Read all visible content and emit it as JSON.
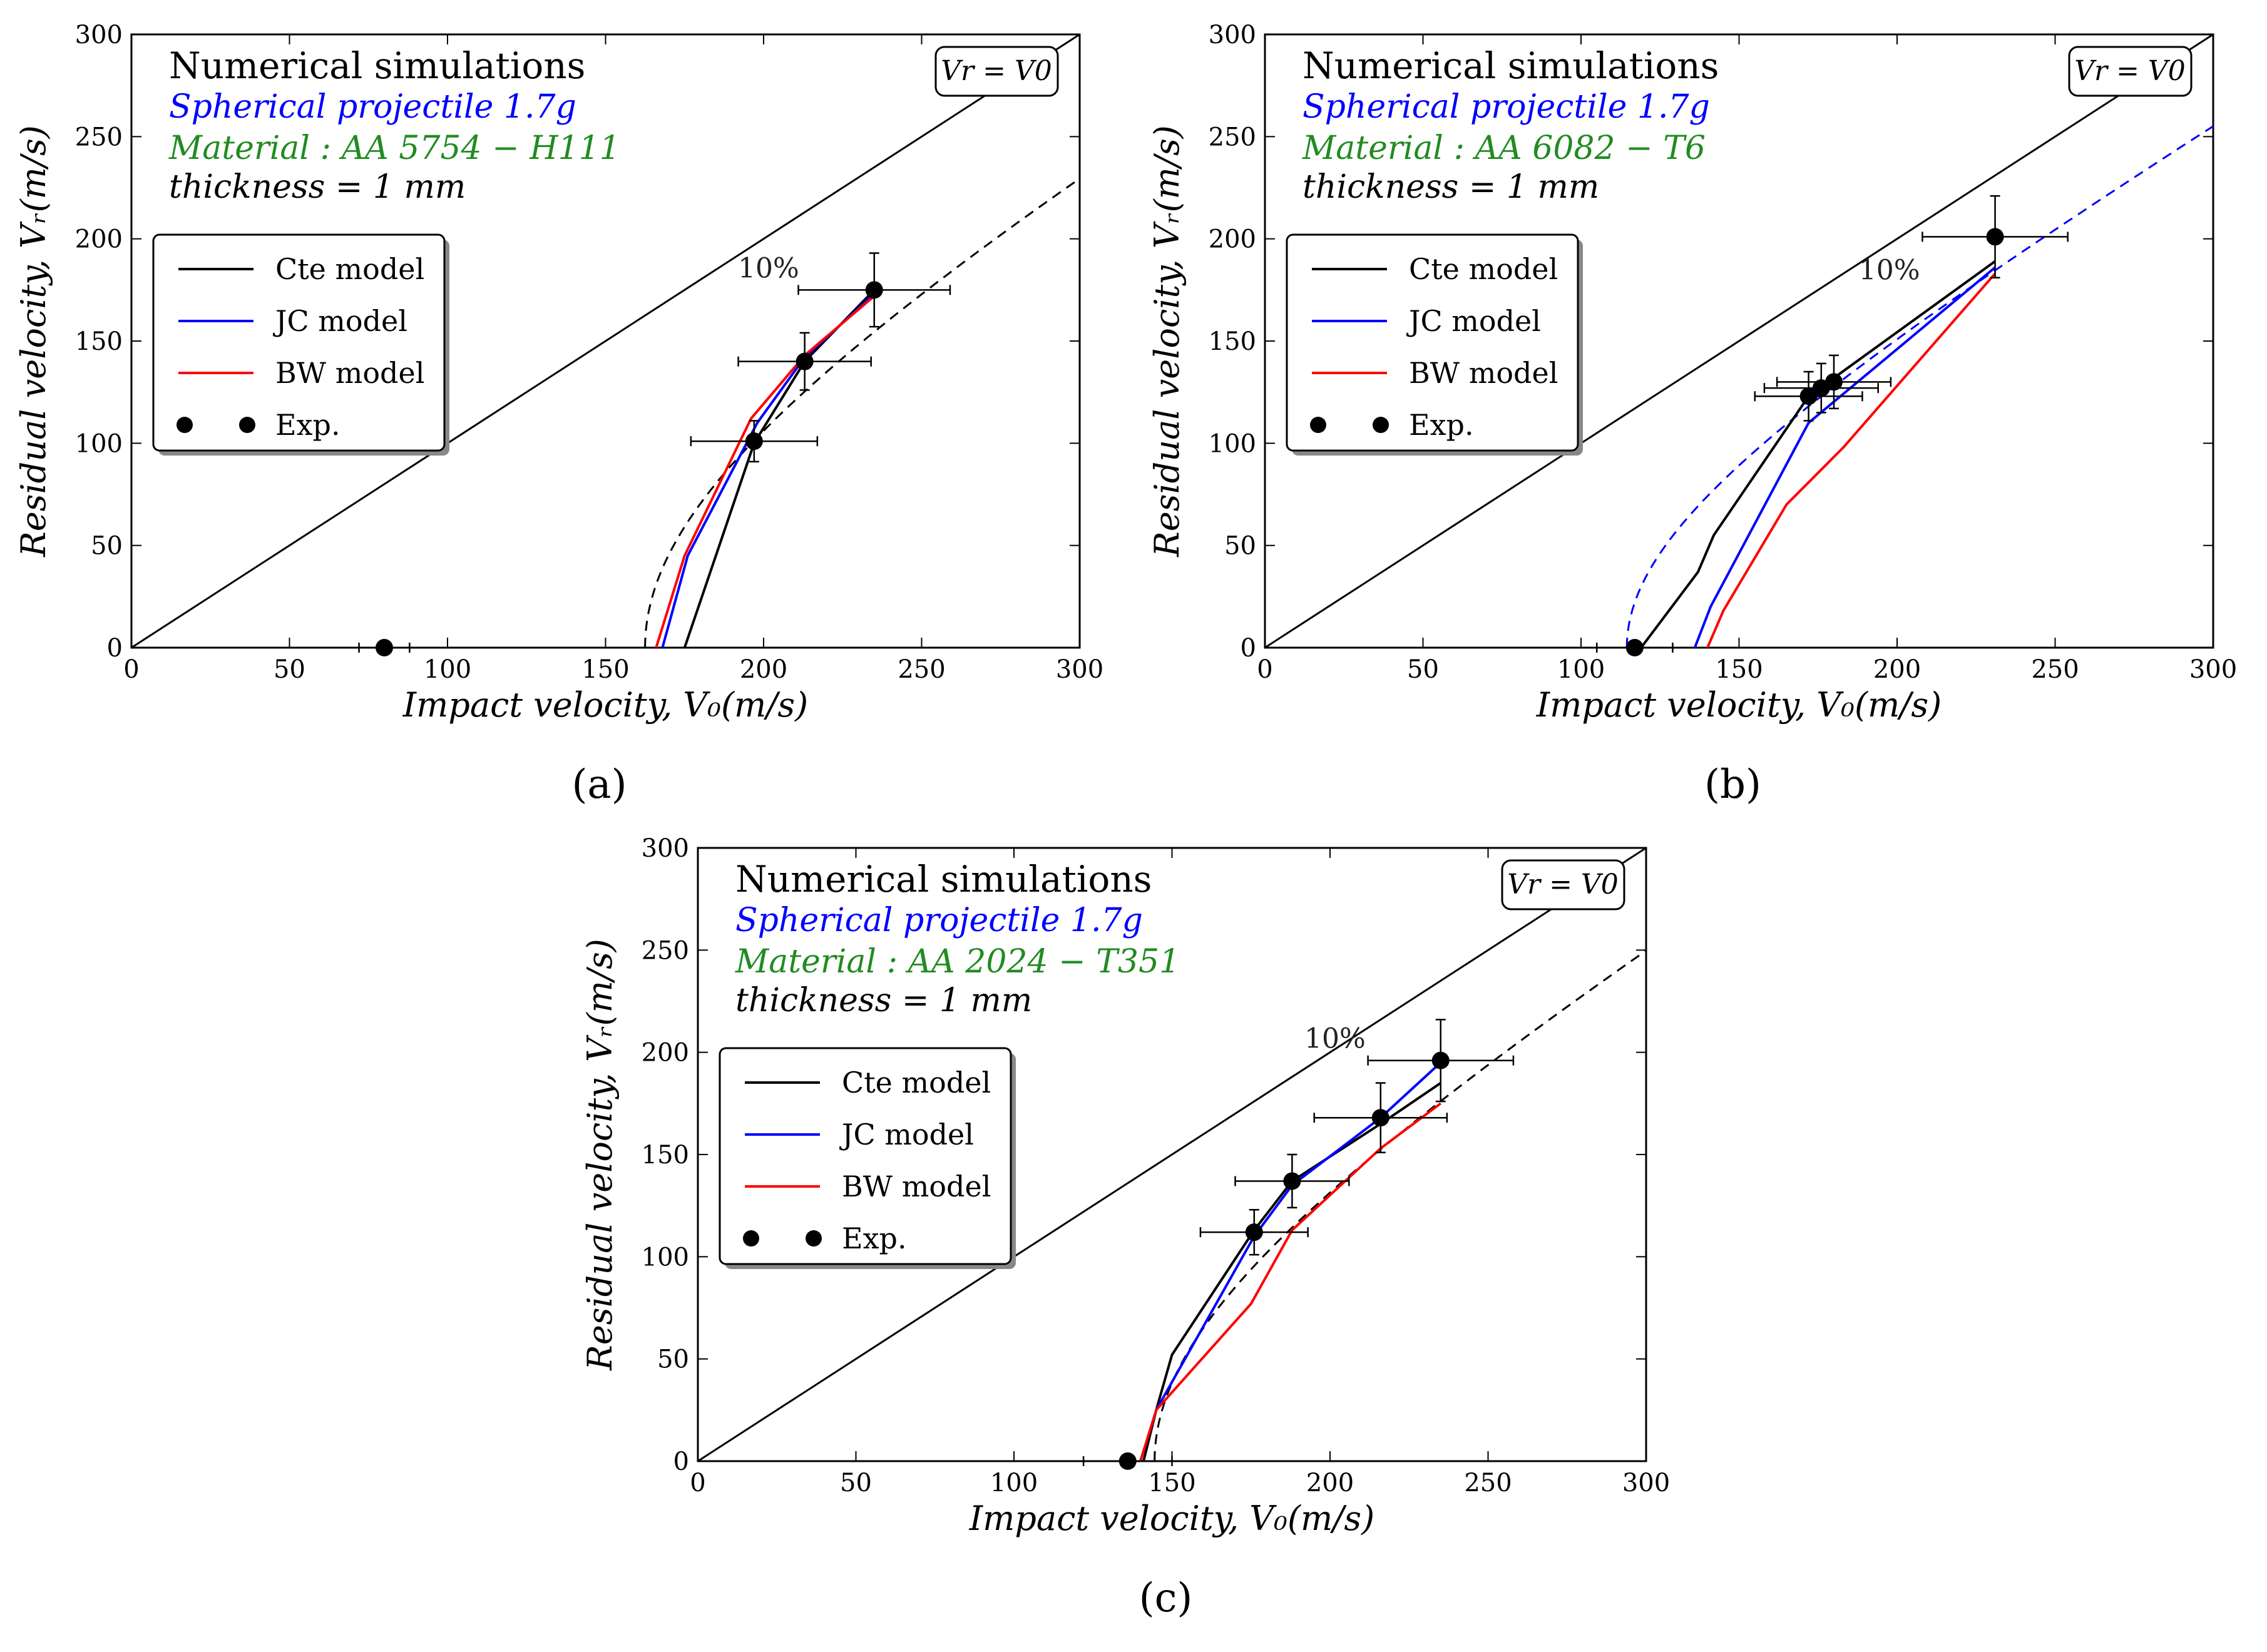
{
  "chart_data": [
    {
      "type": "line",
      "panel_label": "(a)",
      "info_title": "Numerical simulations",
      "projectile": "Spherical projectile 1.7g",
      "material": "Material :  AA 5754 − H111",
      "thickness": "thickness = 1 mm",
      "xlabel": "Impact velocity,  V₀(m/s)",
      "ylabel": "Residual velocity,  Vᵣ(m/s)",
      "xlim": [
        0,
        300
      ],
      "ylim": [
        0,
        300
      ],
      "xticks": [
        "0",
        "50",
        "100",
        "150",
        "200",
        "250",
        "300"
      ],
      "yticks": [
        "0",
        "50",
        "100",
        "150",
        "200",
        "250",
        "300"
      ],
      "ref_line_label": "Vr = V0",
      "percent_label": "10%",
      "legend": [
        "Cte model",
        "JC model",
        "BW model",
        "Exp."
      ],
      "series": [
        {
          "name": "Cte model",
          "color": "#000000",
          "x": [
            175,
            186,
            197,
            213,
            235
          ],
          "y": [
            0,
            50,
            100,
            140,
            175
          ]
        },
        {
          "name": "JC model",
          "color": "#0000ff",
          "x": [
            168,
            176,
            198,
            213,
            235
          ],
          "y": [
            0,
            45,
            110,
            142,
            173
          ]
        },
        {
          "name": "BW model",
          "color": "#ff0000",
          "x": [
            166,
            175,
            196,
            213,
            235
          ],
          "y": [
            0,
            45,
            112,
            143,
            172
          ]
        }
      ],
      "fit_curve": {
        "color": "#000000",
        "style": "dashed",
        "v_bl": 162.5,
        "a": 0.91,
        "p": 2.0,
        "x_max": 300
      },
      "experiments": [
        {
          "x": 80,
          "y": 0,
          "xerr": 8,
          "yerr": 0
        },
        {
          "x": 197,
          "y": 101,
          "xerr": 20,
          "yerr": 10
        },
        {
          "x": 213,
          "y": 140,
          "xerr": 21,
          "yerr": 14
        },
        {
          "x": 235,
          "y": 175,
          "xerr": 24,
          "yerr": 18
        }
      ]
    },
    {
      "type": "line",
      "panel_label": "(b)",
      "info_title": "Numerical simulations",
      "projectile": "Spherical projectile 1.7g",
      "material": "Material :  AA 6082 − T6",
      "thickness": "thickness = 1 mm",
      "xlabel": "Impact velocity,  V₀(m/s)",
      "ylabel": "Residual velocity,  Vᵣ(m/s)",
      "xlim": [
        0,
        300
      ],
      "ylim": [
        0,
        300
      ],
      "xticks": [
        "0",
        "50",
        "100",
        "150",
        "200",
        "250",
        "300"
      ],
      "yticks": [
        "0",
        "50",
        "100",
        "150",
        "200",
        "250",
        "300"
      ],
      "ref_line_label": "Vr = V0",
      "percent_label": "10%",
      "legend": [
        "Cte model",
        "JC model",
        "BW model",
        "Exp."
      ],
      "series": [
        {
          "name": "Cte model",
          "color": "#000000",
          "x": [
            119,
            137,
            142,
            172,
            231
          ],
          "y": [
            0,
            37,
            55,
            123,
            189
          ]
        },
        {
          "name": "JC model",
          "color": "#0000ff",
          "x": [
            136,
            141,
            172,
            231
          ],
          "y": [
            0,
            20,
            110,
            186
          ]
        },
        {
          "name": "BW model",
          "color": "#ff0000",
          "x": [
            140,
            145,
            165,
            183,
            231
          ],
          "y": [
            0,
            18,
            70,
            98,
            183
          ]
        }
      ],
      "fit_curve": {
        "color": "#0000ff",
        "style": "dashed",
        "v_bl": 114.5,
        "a": 0.92,
        "p": 2.0,
        "x_max": 300
      },
      "experiments": [
        {
          "x": 117,
          "y": 0,
          "xerr": 12,
          "yerr": 0
        },
        {
          "x": 172,
          "y": 123,
          "xerr": 17,
          "yerr": 12
        },
        {
          "x": 176,
          "y": 127,
          "xerr": 18,
          "yerr": 12
        },
        {
          "x": 180,
          "y": 130,
          "xerr": 18,
          "yerr": 13
        },
        {
          "x": 231,
          "y": 201,
          "xerr": 23,
          "yerr": 20
        }
      ]
    },
    {
      "type": "line",
      "panel_label": "(c)",
      "info_title": "Numerical simulations",
      "projectile": "Spherical projectile 1.7g",
      "material": "Material :  AA 2024 − T351",
      "thickness": "thickness = 1 mm",
      "xlabel": "Impact velocity,  V₀(m/s)",
      "ylabel": "Residual velocity,  Vᵣ(m/s)",
      "xlim": [
        0,
        300
      ],
      "ylim": [
        0,
        300
      ],
      "xticks": [
        "0",
        "50",
        "100",
        "150",
        "200",
        "250",
        "300"
      ],
      "yticks": [
        "0",
        "50",
        "100",
        "150",
        "200",
        "250",
        "300"
      ],
      "ref_line_label": "Vr = V0",
      "percent_label": "10%",
      "legend": [
        "Cte model",
        "JC model",
        "BW model",
        "Exp."
      ],
      "series": [
        {
          "name": "Cte model",
          "color": "#000000",
          "x": [
            141,
            145,
            150,
            176,
            188,
            216,
            235
          ],
          "y": [
            0,
            25,
            52,
            113,
            137,
            165,
            185
          ]
        },
        {
          "name": "JC model",
          "color": "#0000ff",
          "x": [
            145,
            176,
            188,
            216,
            235
          ],
          "y": [
            25,
            110,
            135,
            168,
            195
          ]
        },
        {
          "name": "BW model",
          "color": "#ff0000",
          "x": [
            140,
            145,
            175,
            188,
            216,
            235
          ],
          "y": [
            0,
            25,
            77,
            113,
            153,
            175
          ]
        }
      ],
      "fit_curve": {
        "color": "#000000",
        "style": "dashed",
        "v_bl": 144.5,
        "a": 0.95,
        "p": 2.0,
        "x_max": 300
      },
      "experiments": [
        {
          "x": 136,
          "y": 0,
          "xerr": 14,
          "yerr": 0
        },
        {
          "x": 176,
          "y": 112,
          "xerr": 17,
          "yerr": 11
        },
        {
          "x": 188,
          "y": 137,
          "xerr": 18,
          "yerr": 13
        },
        {
          "x": 216,
          "y": 168,
          "xerr": 21,
          "yerr": 17
        },
        {
          "x": 235,
          "y": 196,
          "xerr": 23,
          "yerr": 20
        }
      ]
    }
  ],
  "colors": {
    "title": "#000000",
    "projectile": "#0000ff",
    "material": "#228b22",
    "thickness": "#000000"
  }
}
